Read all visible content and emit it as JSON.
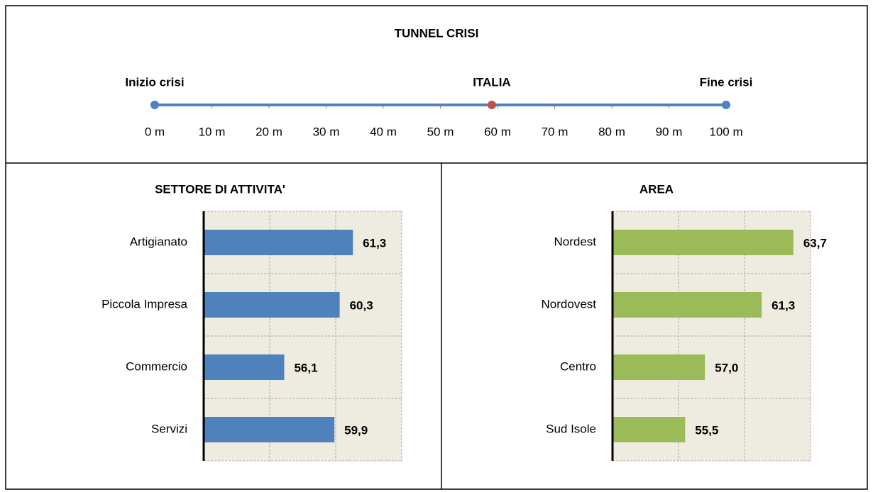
{
  "chart_data": [
    {
      "type": "scatter",
      "title": "TUNNEL CRISI",
      "points": [
        {
          "label": "Inizio crisi",
          "x": 0,
          "color": "#4f81bd"
        },
        {
          "label": "ITALIA",
          "x": 59,
          "color": "#c0504d"
        },
        {
          "label": "Fine crisi",
          "x": 100,
          "color": "#4f81bd"
        }
      ],
      "line_color": "#4f81bd",
      "xlim": [
        0,
        100
      ],
      "xticks": [
        {
          "value": 0,
          "label": "0 m"
        },
        {
          "value": 10,
          "label": "10 m"
        },
        {
          "value": 20,
          "label": "20 m"
        },
        {
          "value": 30,
          "label": "30 m"
        },
        {
          "value": 40,
          "label": "40 m"
        },
        {
          "value": 50,
          "label": "50 m"
        },
        {
          "value": 60,
          "label": "60 m"
        },
        {
          "value": 70,
          "label": "70 m"
        },
        {
          "value": 80,
          "label": "80 m"
        },
        {
          "value": 90,
          "label": "90 m"
        },
        {
          "value": 100,
          "label": "100 m"
        }
      ]
    },
    {
      "type": "bar",
      "orientation": "horizontal",
      "title": "SETTORE DI ATTIVITA'",
      "categories": [
        "Artigianato",
        "Piccola Impresa",
        "Commercio",
        "Servizi"
      ],
      "values": [
        61.3,
        60.3,
        56.1,
        59.9
      ],
      "value_labels": [
        "61,3",
        "60,3",
        "56,1",
        "59,9"
      ],
      "color": "#4f81bd",
      "xlim": [
        50,
        65
      ],
      "xticks": [
        50,
        55,
        60,
        65
      ],
      "grid": true
    },
    {
      "type": "bar",
      "orientation": "horizontal",
      "title": "AREA",
      "categories": [
        "Nordest",
        "Nordovest",
        "Centro",
        "Sud Isole"
      ],
      "values": [
        63.7,
        61.3,
        57.0,
        55.5
      ],
      "value_labels": [
        "63,7",
        "61,3",
        "57,0",
        "55,5"
      ],
      "color": "#9bbb59",
      "xlim": [
        50,
        65
      ],
      "xticks": [
        50,
        55,
        60,
        65
      ],
      "grid": true
    }
  ]
}
